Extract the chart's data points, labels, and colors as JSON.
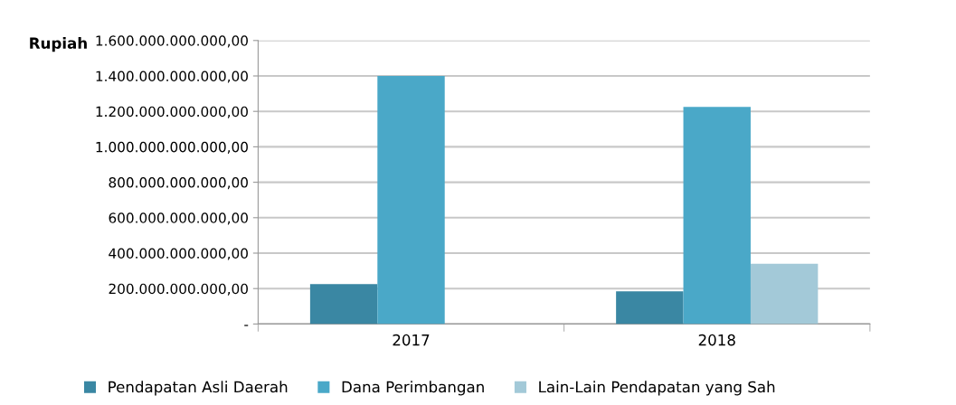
{
  "chart_data": {
    "type": "bar",
    "ylabel": "Rupiah",
    "categories": [
      "2017",
      "2018"
    ],
    "series": [
      {
        "name": "Pendapatan Asli Daerah",
        "color": "#3a87a3",
        "values": [
          225000000000,
          185000000000
        ]
      },
      {
        "name": "Dana Perimbangan",
        "color": "#4aa8c8",
        "values": [
          1400000000000,
          1225000000000
        ]
      },
      {
        "name": "Lain-Lain Pendapatan yang Sah",
        "color": "#a3c9d8",
        "values": [
          null,
          340000000000
        ]
      }
    ],
    "ylim": [
      0,
      1600000000000
    ],
    "yticks": [
      {
        "value": 0,
        "label": "-"
      },
      {
        "value": 200000000000,
        "label": "200.000.000.000,00"
      },
      {
        "value": 400000000000,
        "label": "400.000.000.000,00"
      },
      {
        "value": 600000000000,
        "label": "600.000.000.000,00"
      },
      {
        "value": 800000000000,
        "label": "800.000.000.000,00"
      },
      {
        "value": 1000000000000,
        "label": "1.000.000.000.000,00"
      },
      {
        "value": 1200000000000,
        "label": "1.200.000.000.000,00"
      },
      {
        "value": 1400000000000,
        "label": "1.400.000.000.000,00"
      },
      {
        "value": 1600000000000,
        "label": "1.600.000.000.000,00"
      }
    ],
    "grid": "y",
    "legend": "bottom"
  }
}
